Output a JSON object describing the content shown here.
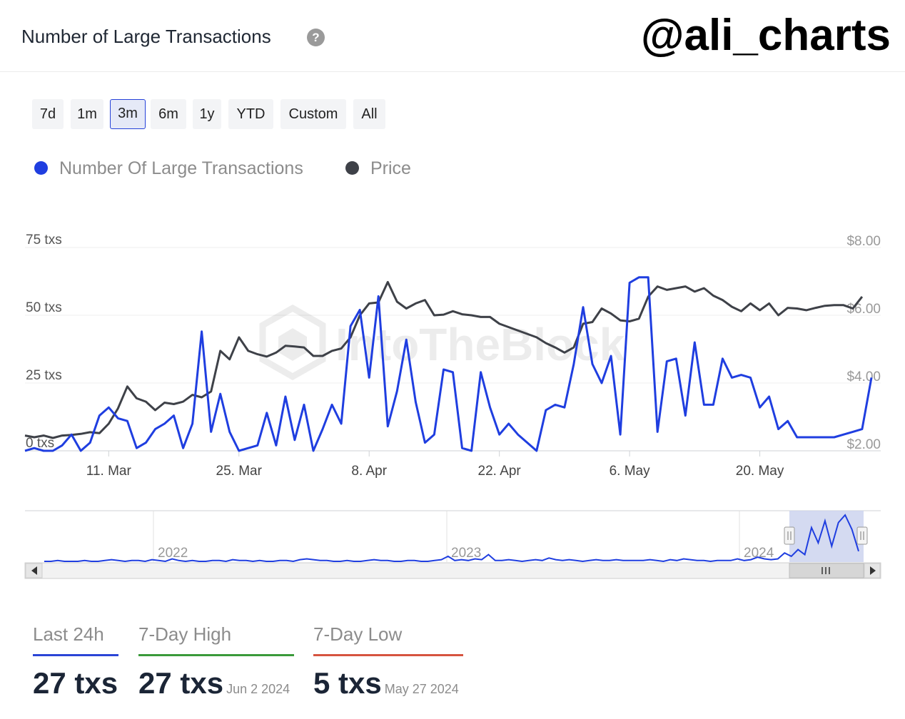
{
  "header": {
    "title": "Number of Large Transactions",
    "help_icon": "?",
    "watermark_handle": "@ali_charts"
  },
  "ranges": [
    {
      "label": "7d"
    },
    {
      "label": "1m"
    },
    {
      "label": "3m",
      "active": true
    },
    {
      "label": "6m"
    },
    {
      "label": "1y"
    },
    {
      "label": "YTD"
    },
    {
      "label": "Custom"
    },
    {
      "label": "All"
    }
  ],
  "legend": [
    {
      "label": "Number Of Large Transactions",
      "color": "#1f3ee0"
    },
    {
      "label": "Price",
      "color": "#3e4148"
    }
  ],
  "chart_data": {
    "type": "line",
    "watermark": "IntoTheBlock",
    "x_tick_labels": [
      "11. Mar",
      "25. Mar",
      "8. Apr",
      "22. Apr",
      "6. May",
      "20. May"
    ],
    "y_left_ticks": [
      "0 txs",
      "25 txs",
      "50 txs",
      "75 txs"
    ],
    "y_right_ticks": [
      "$2.00",
      "$4.00",
      "$6.00",
      "$8.00"
    ],
    "ylim_left": [
      0,
      75
    ],
    "ylim_right": [
      2,
      8
    ],
    "x_range": [
      "2024-03-02",
      "2024-06-02"
    ],
    "series": [
      {
        "name": "Number Of Large Transactions",
        "color": "#1f3ee0",
        "axis": "left",
        "values": [
          0,
          1,
          0,
          0,
          2,
          6,
          0,
          3,
          13,
          16,
          12,
          11,
          1,
          3,
          8,
          10,
          13,
          1,
          10,
          44,
          7,
          21,
          7,
          0,
          1,
          2,
          14,
          2,
          20,
          4,
          17,
          0,
          8,
          17,
          10,
          46,
          52,
          27,
          57,
          9,
          22,
          41,
          18,
          3,
          6,
          30,
          29,
          1,
          0,
          29,
          16,
          6,
          10,
          6,
          3,
          0,
          15,
          17,
          16,
          32,
          53,
          32,
          25,
          35,
          6,
          62,
          64,
          64,
          7,
          33,
          34,
          13,
          40,
          17,
          17,
          34,
          27,
          28,
          27,
          16,
          20,
          8,
          11,
          5,
          5,
          5,
          5,
          5,
          6,
          7,
          8,
          27
        ]
      },
      {
        "name": "Price",
        "color": "#3e4148",
        "axis": "right",
        "values": [
          2.45,
          2.4,
          2.45,
          2.38,
          2.45,
          2.47,
          2.5,
          2.55,
          2.52,
          2.8,
          3.25,
          3.9,
          3.55,
          3.45,
          3.2,
          3.42,
          3.38,
          3.45,
          3.65,
          3.58,
          3.75,
          4.95,
          4.7,
          5.35,
          4.95,
          4.85,
          4.78,
          4.9,
          5.1,
          5.08,
          5.05,
          4.8,
          4.8,
          4.95,
          5.02,
          5.35,
          6.0,
          6.35,
          6.38,
          6.98,
          6.4,
          6.2,
          6.35,
          6.45,
          6.0,
          6.02,
          6.12,
          6.03,
          6.0,
          5.95,
          5.95,
          5.75,
          5.65,
          5.55,
          5.45,
          5.35,
          5.18,
          5.05,
          4.9,
          5.05,
          5.75,
          5.8,
          6.2,
          6.05,
          5.85,
          5.82,
          5.9,
          6.55,
          6.85,
          6.75,
          6.8,
          6.85,
          6.7,
          6.8,
          6.58,
          6.45,
          6.25,
          6.12,
          6.35,
          6.15,
          6.35,
          6.0,
          6.22,
          6.2,
          6.15,
          6.22,
          6.28,
          6.3,
          6.3,
          6.2,
          6.55
        ]
      }
    ],
    "navigator": {
      "year_labels": [
        "2022",
        "2023",
        "2024"
      ],
      "values": [
        0,
        0,
        1,
        0,
        0,
        0,
        1,
        0,
        0,
        1,
        2,
        1,
        0,
        1,
        1,
        0,
        2,
        1,
        0,
        3,
        1,
        0,
        1,
        0,
        0,
        1,
        1,
        0,
        2,
        1,
        1,
        0,
        1,
        0,
        0,
        1,
        1,
        0,
        2,
        3,
        2,
        1,
        1,
        0,
        0,
        1,
        0,
        0,
        1,
        2,
        1,
        1,
        0,
        0,
        1,
        1,
        0,
        0,
        1,
        2,
        6,
        1,
        2,
        1,
        3,
        2,
        8,
        1,
        1,
        2,
        1,
        0,
        1,
        2,
        1,
        4,
        2,
        1,
        2,
        1,
        0,
        1,
        2,
        1,
        1,
        2,
        1,
        1,
        1,
        1,
        2,
        1,
        0,
        2,
        1,
        3,
        2,
        1,
        1,
        0,
        1,
        1,
        1,
        3,
        1,
        2,
        5,
        3,
        2,
        3,
        10,
        6,
        14,
        8,
        40,
        22,
        48,
        18,
        46,
        55,
        38,
        12
      ]
    }
  },
  "stats": [
    {
      "label": "Last 24h",
      "value": "27 txs",
      "date": "",
      "color": "#2b45d6"
    },
    {
      "label": "7-Day High",
      "value": "27 txs",
      "date": "Jun 2 2024",
      "color": "#3a9a3a"
    },
    {
      "label": "7-Day Low",
      "value": "5 txs",
      "date": "May 27 2024",
      "color": "#d65440"
    }
  ]
}
